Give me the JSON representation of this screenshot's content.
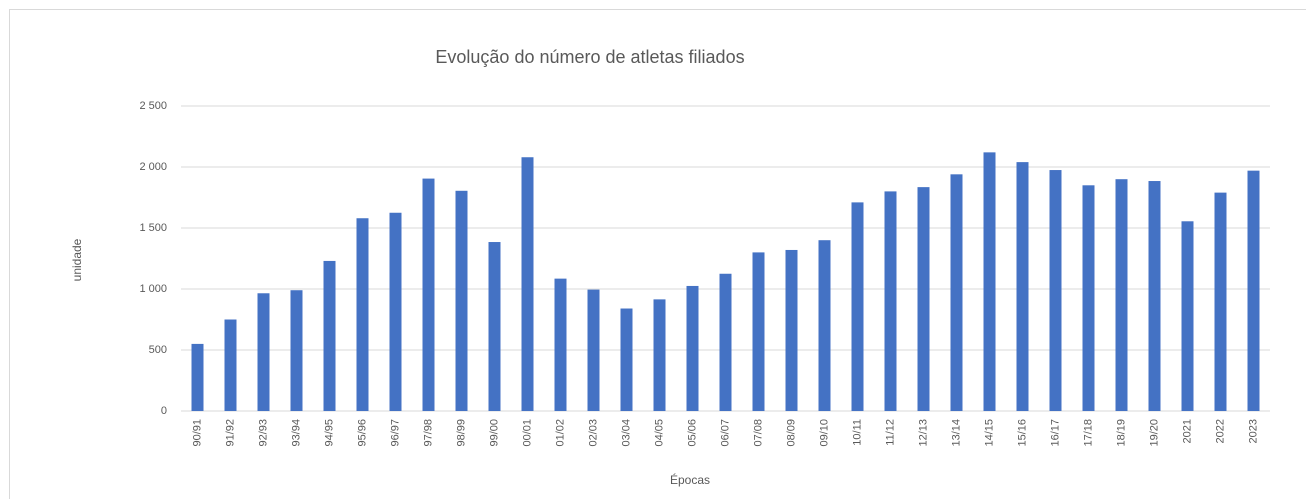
{
  "chart_data": {
    "type": "bar",
    "title": "Evolução do número de atletas filiados",
    "x_label": "Épocas",
    "y_label": "unidade",
    "categories": [
      "90/91",
      "91/92",
      "92/93",
      "93/94",
      "94/95",
      "95/96",
      "96/97",
      "97/98",
      "98/99",
      "99/00",
      "00/01",
      "01/02",
      "02/03",
      "03/04",
      "04/05",
      "05/06",
      "06/07",
      "07/08",
      "08/09",
      "09/10",
      "10/11",
      "11/12",
      "12/13",
      "13/14",
      "14/15",
      "15/16",
      "16/17",
      "17/18",
      "18/19",
      "19/20",
      "2021",
      "2022",
      "2023"
    ],
    "values": [
      550,
      750,
      965,
      990,
      1230,
      1580,
      1625,
      1905,
      1805,
      1385,
      2080,
      1085,
      995,
      840,
      915,
      1025,
      1125,
      1300,
      1320,
      1400,
      1710,
      1800,
      1835,
      1940,
      2120,
      2040,
      1975,
      1850,
      1900,
      1885,
      1555,
      1790,
      1970
    ],
    "color": "#4472c4",
    "ylim": [
      0,
      2500
    ],
    "yticks": [
      0,
      500,
      {
        "value": 1000,
        "label": "1 000"
      },
      {
        "value": 1500,
        "label": "1 500"
      },
      {
        "value": 2000,
        "label": "2 000"
      },
      {
        "value": 2500,
        "label": "2 500"
      }
    ],
    "grid": true
  }
}
